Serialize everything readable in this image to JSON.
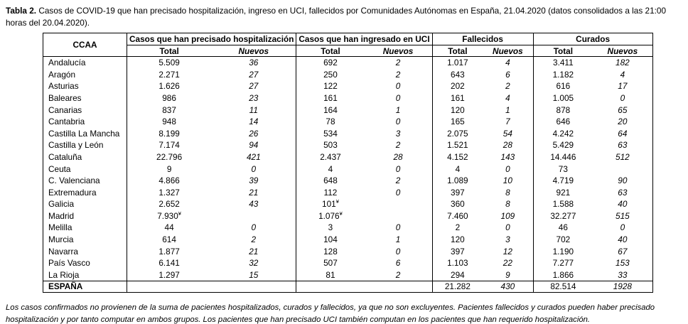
{
  "title": {
    "label": "Tabla 2.",
    "text": " Casos de COVID-19 que han precisado hospitalización, ingreso en UCI, fallecidos  por Comunidades Autónomas en España, 21.04.2020 (datos consolidados a las 21:00 horas del 20.04.2020)."
  },
  "table": {
    "col_ccaa": "CCAA",
    "groups": [
      {
        "label": "Casos que han precisado hospitalización"
      },
      {
        "label": "Casos que han ingresado en UCI"
      },
      {
        "label": "Fallecidos"
      },
      {
        "label": "Curados"
      }
    ],
    "subheaders": {
      "total": "Total",
      "nuevos": "Nuevos"
    },
    "rows": [
      {
        "ccaa": "Andalucía",
        "values": [
          "5.509",
          "36",
          "692",
          "2",
          "1.017",
          "4",
          "3.411",
          "182"
        ]
      },
      {
        "ccaa": "Aragón",
        "values": [
          "2.271",
          "27",
          "250",
          "2",
          "643",
          "6",
          "1.182",
          "4"
        ]
      },
      {
        "ccaa": "Asturias",
        "values": [
          "1.626",
          "27",
          "122",
          "0",
          "202",
          "2",
          "616",
          "17"
        ]
      },
      {
        "ccaa": "Baleares",
        "values": [
          "986",
          "23",
          "161",
          "0",
          "161",
          "4",
          "1.005",
          "0"
        ]
      },
      {
        "ccaa": "Canarias",
        "values": [
          "837",
          "11",
          "164",
          "1",
          "120",
          "1",
          "878",
          "65"
        ]
      },
      {
        "ccaa": "Cantabria",
        "values": [
          "948",
          "14",
          "78",
          "0",
          "165",
          "7",
          "646",
          "20"
        ]
      },
      {
        "ccaa": "Castilla La Mancha",
        "values": [
          "8.199",
          "26",
          "534",
          "3",
          "2.075",
          "54",
          "4.242",
          "64"
        ]
      },
      {
        "ccaa": "Castilla y León",
        "values": [
          "7.174",
          "94",
          "503",
          "2",
          "1.521",
          "28",
          "5.429",
          "63"
        ]
      },
      {
        "ccaa": "Cataluña",
        "values": [
          "22.796",
          "421",
          "2.437",
          "28",
          "4.152",
          "143",
          "14.446",
          "512"
        ]
      },
      {
        "ccaa": "Ceuta",
        "values": [
          "9",
          "0",
          "4",
          "0",
          "4",
          "0",
          "73",
          ""
        ]
      },
      {
        "ccaa": "C. Valenciana",
        "values": [
          "4.866",
          "39",
          "648",
          "2",
          "1.089",
          "10",
          "4.719",
          "90"
        ]
      },
      {
        "ccaa": "Extremadura",
        "values": [
          "1.327",
          "21",
          "112",
          "0",
          "397",
          "8",
          "921",
          "63"
        ]
      },
      {
        "ccaa": "Galicia",
        "values": [
          "2.652",
          "43",
          "101¥",
          "",
          "360",
          "8",
          "1.588",
          "40"
        ]
      },
      {
        "ccaa": "Madrid",
        "values": [
          "7.930¥",
          "",
          "1.076¥",
          "",
          "7.460",
          "109",
          "32.277",
          "515"
        ]
      },
      {
        "ccaa": "Melilla",
        "values": [
          "44",
          "0",
          "3",
          "0",
          "2",
          "0",
          "46",
          "0"
        ]
      },
      {
        "ccaa": "Murcia",
        "values": [
          "614",
          "2",
          "104",
          "1",
          "120",
          "3",
          "702",
          "40"
        ]
      },
      {
        "ccaa": "Navarra",
        "values": [
          "1.877",
          "21",
          "128",
          "0",
          "397",
          "12",
          "1.190",
          "67"
        ]
      },
      {
        "ccaa": "País Vasco",
        "values": [
          "6.141",
          "32",
          "507",
          "6",
          "1.103",
          "22",
          "7.277",
          "153"
        ]
      },
      {
        "ccaa": "La Rioja",
        "values": [
          "1.297",
          "15",
          "81",
          "2",
          "294",
          "9",
          "1.866",
          "33"
        ]
      }
    ],
    "total_row": {
      "ccaa": "ESPAÑA",
      "values": [
        "",
        "",
        "",
        "",
        "21.282",
        "430",
        "82.514",
        "1928"
      ]
    }
  },
  "footnote": "Los casos confirmados no provienen de la suma de pacientes hospitalizados, curados y fallecidos, ya que no son excluyentes. Pacientes fallecidos y curados pueden haber precisado hospitalización y por tanto computar en ambos grupos. Los pacientes que han precisado UCI también computan en los pacientes que han requerido hospitalización."
}
